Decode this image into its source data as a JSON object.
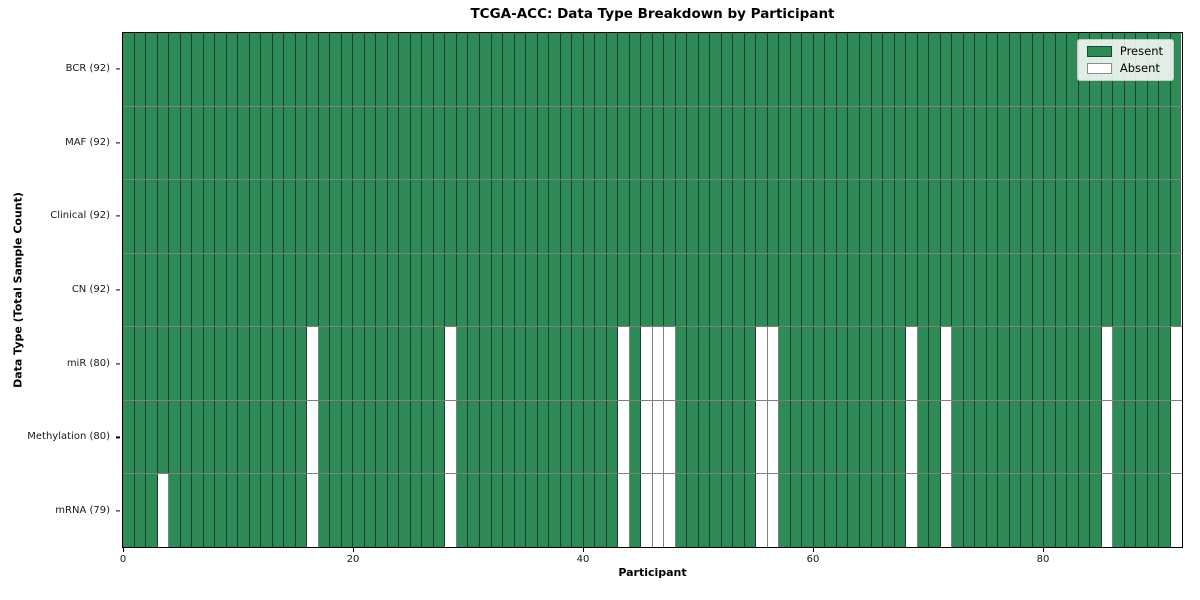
{
  "chart_data": {
    "type": "heatmap",
    "title": "TCGA-ACC: Data Type Breakdown by Participant",
    "xlabel": "Participant",
    "ylabel": "Data Type (Total Sample Count)",
    "n_participants": 92,
    "x_ticks": [
      0,
      20,
      40,
      60,
      80
    ],
    "rows": [
      {
        "label": "BCR (92)",
        "data_type": "BCR",
        "present_count": 92,
        "absent_participants": []
      },
      {
        "label": "MAF (92)",
        "data_type": "MAF",
        "present_count": 92,
        "absent_participants": []
      },
      {
        "label": "Clinical (92)",
        "data_type": "Clinical",
        "present_count": 92,
        "absent_participants": []
      },
      {
        "label": "CN (92)",
        "data_type": "CN",
        "present_count": 92,
        "absent_participants": []
      },
      {
        "label": "miR (80)",
        "data_type": "miR",
        "present_count": 80,
        "absent_participants": [
          16,
          28,
          43,
          45,
          46,
          47,
          55,
          56,
          68,
          71,
          85,
          91
        ]
      },
      {
        "label": "Methylation (80)",
        "data_type": "Methylation",
        "present_count": 80,
        "absent_participants": [
          16,
          28,
          43,
          45,
          46,
          47,
          55,
          56,
          68,
          71,
          85,
          91
        ]
      },
      {
        "label": "mRNA (79)",
        "data_type": "mRNA",
        "present_count": 79,
        "absent_participants": [
          3,
          16,
          28,
          43,
          45,
          46,
          47,
          55,
          56,
          68,
          71,
          85,
          91
        ]
      }
    ],
    "legend": {
      "position": "upper right",
      "entries": [
        {
          "label": "Present",
          "color": "#2e8b57"
        },
        {
          "label": "Absent",
          "color": "#ffffff"
        }
      ]
    },
    "colors": {
      "present": "#2e8b57",
      "absent": "#ffffff",
      "cell_border": "rgba(0,0,0,0.5)",
      "spine": "#000000"
    }
  }
}
